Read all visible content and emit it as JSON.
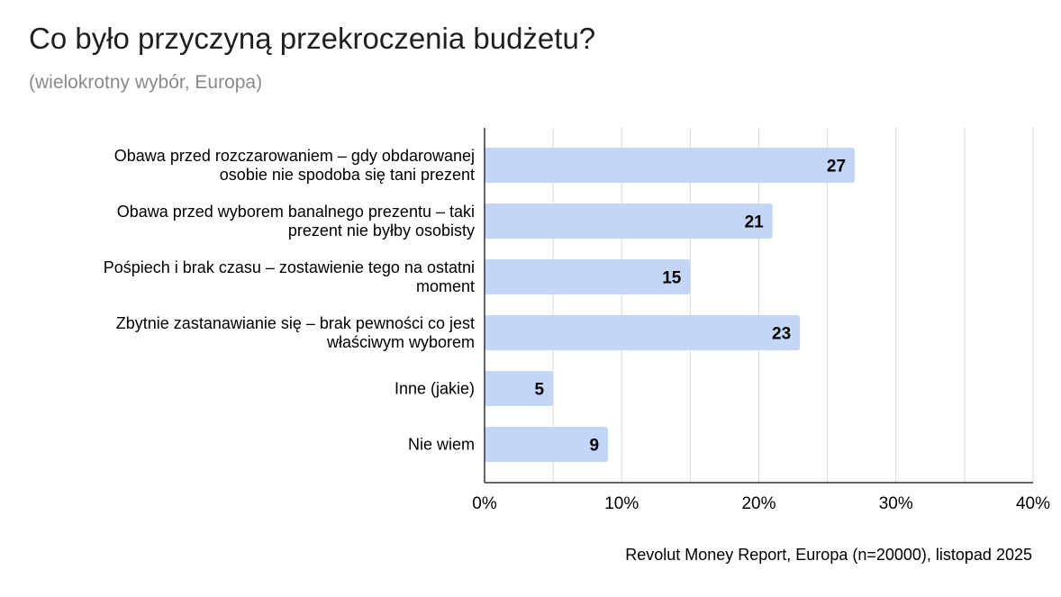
{
  "chart_data": {
    "type": "bar",
    "orientation": "horizontal",
    "title": "Co było przyczyną przekroczenia budżetu?",
    "subtitle": "(wielokrotny wybór, Europa)",
    "source": "Revolut Money Report, Europa (n=20000), listopad 2025",
    "categories": [
      [
        "Obawa przed rozczarowaniem – gdy obdarowanej",
        "osobie nie spodoba się tani prezent"
      ],
      [
        "Obawa przed wyborem banalnego prezentu – taki",
        "prezent nie byłby osobisty"
      ],
      [
        "Pośpiech i brak czasu – zostawienie tego na ostatni",
        "moment"
      ],
      [
        "Zbytnie zastanawianie się – brak pewności co jest",
        "właściwym wyborem"
      ],
      [
        "Inne (jakie)"
      ],
      [
        "Nie wiem"
      ]
    ],
    "values": [
      27,
      21,
      15,
      23,
      5,
      9
    ],
    "data_labels": [
      "27",
      "21",
      "15",
      "23",
      "5",
      "9"
    ],
    "xlim": [
      0,
      40
    ],
    "x_ticks": [
      0,
      10,
      20,
      30,
      40
    ],
    "x_tick_labels": [
      "0%",
      "10%",
      "20%",
      "30%",
      "40%"
    ],
    "grid": true,
    "legend": "none",
    "colors": {
      "bar": "#c3d6f7",
      "grid": "#d9d9d9",
      "axis": "#333333",
      "label": "#000000"
    }
  }
}
